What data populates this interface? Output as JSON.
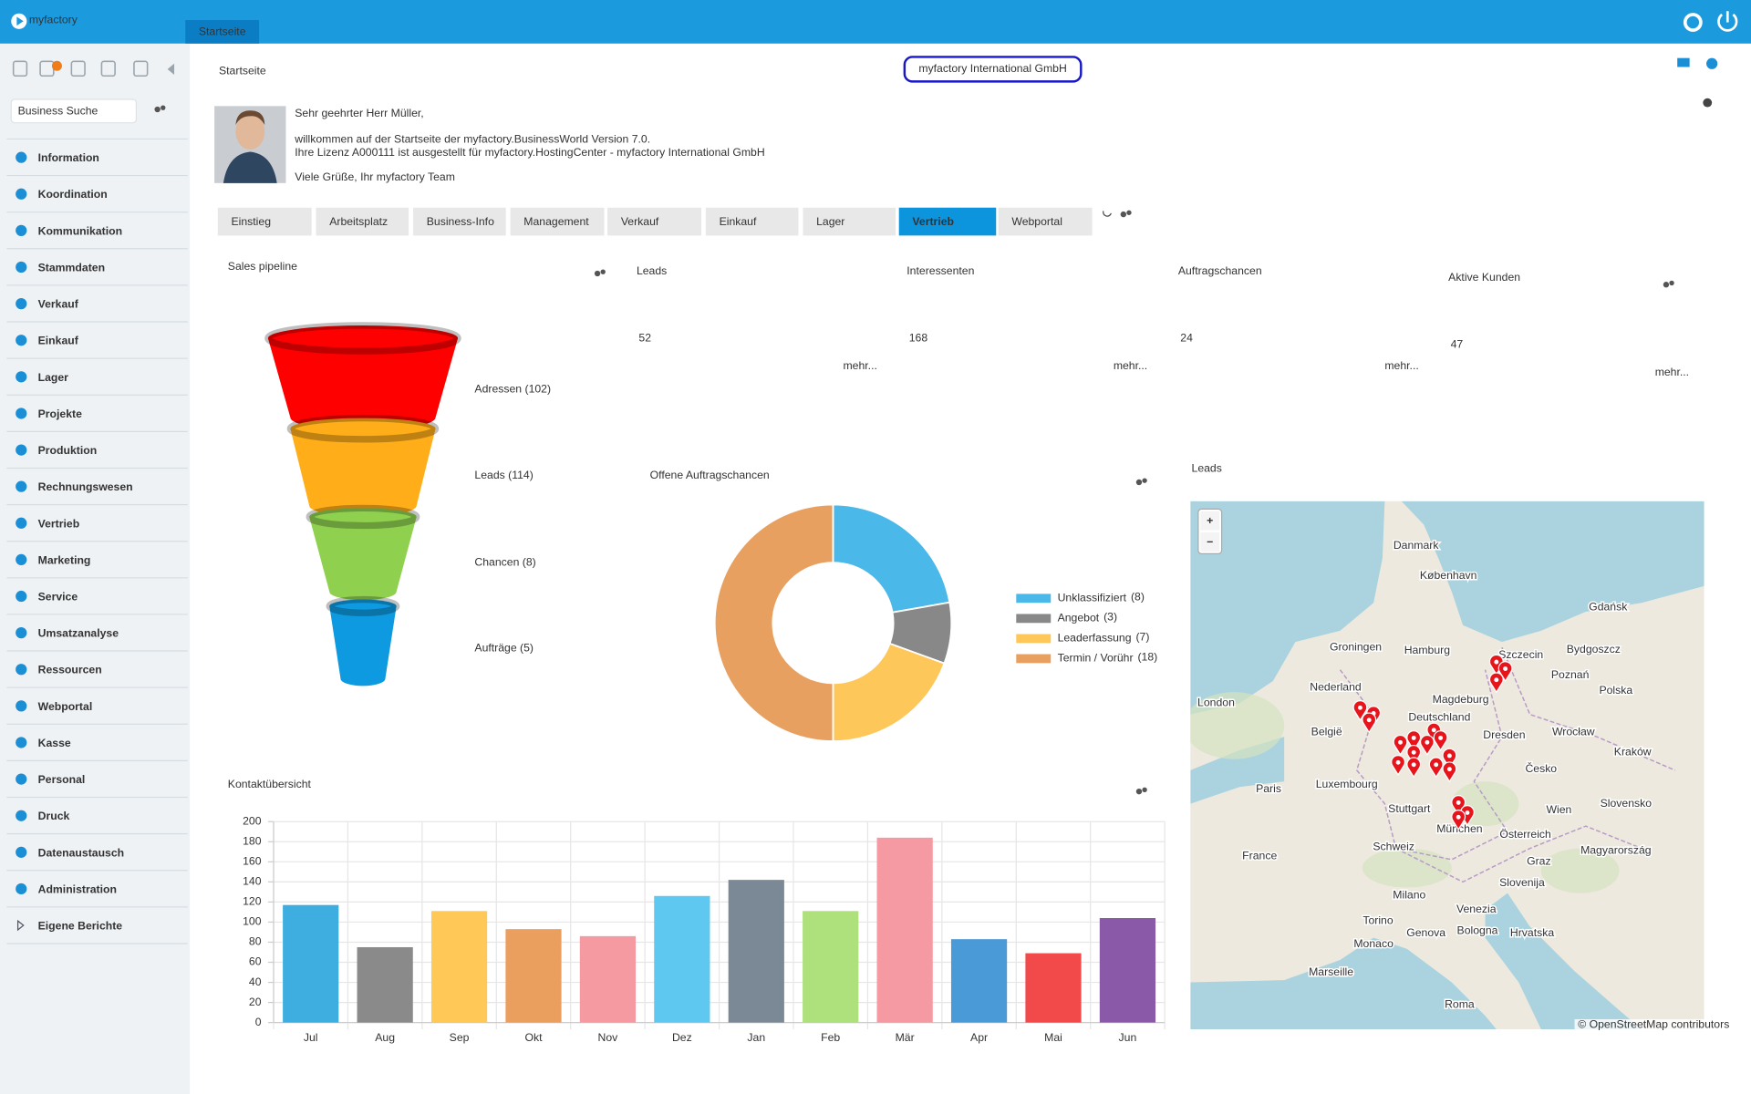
{
  "header": {
    "logo": "myfactory",
    "tab": "Startseite"
  },
  "sidebar": {
    "search_placeholder": "Business Suche",
    "menu": [
      "Information",
      "Koordination",
      "Kommunikation",
      "Stammdaten",
      "Verkauf",
      "Einkauf",
      "Lager",
      "Projekte",
      "Produktion",
      "Rechnungswesen",
      "Vertrieb",
      "Marketing",
      "Service",
      "Umsatzanalyse",
      "Ressourcen",
      "Webportal",
      "Kasse",
      "Personal",
      "Druck",
      "Datenaustausch",
      "Administration",
      "Eigene Berichte"
    ]
  },
  "page": {
    "title": "Startseite",
    "company": "myfactory International GmbH",
    "welcome": [
      "Sehr geehrter Herr Müller,",
      "willkommen auf der Startseite der myfactory.BusinessWorld Version 7.0.",
      "Ihre Lizenz A000111 ist ausgestellt für myfactory.HostingCenter - myfactory International GmbH",
      "Viele Grüße, Ihr myfactory Team"
    ]
  },
  "tabs": {
    "items": [
      "Einstieg",
      "Arbeitsplatz",
      "Business-Info",
      "Management",
      "Verkauf",
      "Einkauf",
      "Lager",
      "Vertrieb",
      "Webportal"
    ],
    "active": 7
  },
  "pipeline": {
    "title": "Sales pipeline",
    "stages": [
      "Adressen (102)",
      "Leads (114)",
      "Chancen (8)",
      "Aufträge (5)"
    ],
    "colors": [
      "#ff0000",
      "#ffae19",
      "#8fd14f",
      "#0e9ae0"
    ]
  },
  "kpis": [
    {
      "label": "Leads",
      "value": 52,
      "color": "#f7a823",
      "more": "mehr..."
    },
    {
      "label": "Interessenten",
      "value": 168,
      "color": "#e8191e",
      "more": "mehr..."
    },
    {
      "label": "Auftragschancen",
      "value": 24,
      "color": "#8cc63f",
      "more": "mehr..."
    },
    {
      "label": "Aktive Kunden",
      "value": 47,
      "color": "#1e90d6",
      "more": "mehr..."
    }
  ],
  "chart_data": [
    {
      "type": "pie",
      "title": "Offene Auftragschancen",
      "donut": true,
      "categories": [
        "Unklassifiziert",
        "Angebot",
        "Leaderfassung",
        "Termin / Vorühr"
      ],
      "values": [
        8,
        3,
        7,
        18
      ],
      "value_labels": [
        "(8)",
        "(3)",
        "(7)",
        "(18)"
      ],
      "colors": [
        "#4ab8e8",
        "#888888",
        "#fdc75a",
        "#e8a060"
      ],
      "legend": "right"
    },
    {
      "type": "bar",
      "title": "Kontaktübersicht",
      "categories": [
        "Jul",
        "Aug",
        "Sep",
        "Okt",
        "Nov",
        "Dez",
        "Jan",
        "Feb",
        "Mär",
        "Apr",
        "Mai",
        "Jun"
      ],
      "values": [
        117,
        75,
        111,
        93,
        86,
        126,
        142,
        111,
        184,
        83,
        69,
        104
      ],
      "colors": [
        "#3eaee0",
        "#8a8a8a",
        "#ffc857",
        "#eb9f5f",
        "#f59aa0",
        "#5ec8f0",
        "#7b8896",
        "#aee07c",
        "#f59aa2",
        "#4a9ad8",
        "#f24a4a",
        "#8a5aa8"
      ],
      "ylim": [
        0,
        200
      ],
      "yticks": [
        0,
        20,
        40,
        60,
        80,
        100,
        120,
        140,
        160,
        180,
        200
      ],
      "grid": true
    }
  ],
  "map": {
    "title": "Leads",
    "places": [
      "Danmark",
      "København",
      "Gdańsk",
      "Hamburg",
      "Groningen",
      "Szczecin",
      "Bydgoszcz",
      "Nederland",
      "Poznań",
      "Polska",
      "London",
      "Magdeburg",
      "Deutschland",
      "Dresden",
      "Wrocław",
      "België",
      "Luxembourg",
      "Česko",
      "Kraków",
      "Paris",
      "Stuttgart",
      "München",
      "Wien",
      "Österreich",
      "Slovensko",
      "France",
      "Schweiz",
      "Graz",
      "Magyarország",
      "Milano",
      "Slovenija",
      "Venezia",
      "Torino",
      "Bologna",
      "Hrvatska",
      "Genova",
      "Monaco",
      "Marseille",
      "Roma"
    ],
    "zoom_in": "+",
    "zoom_out": "−",
    "attribution": "© OpenStreetMap contributors"
  }
}
